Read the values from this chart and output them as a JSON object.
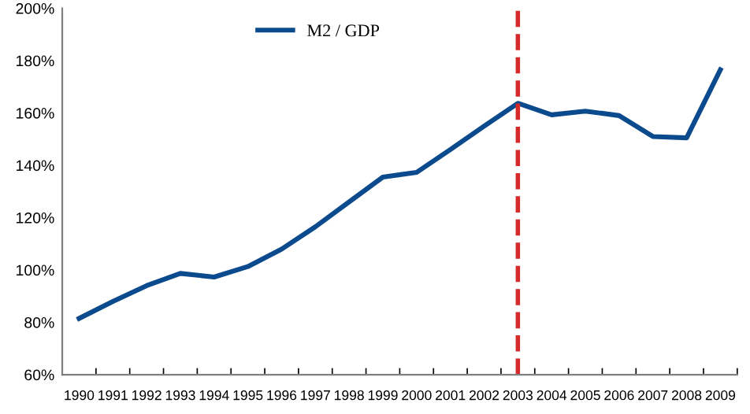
{
  "chart_data": {
    "type": "line",
    "categories": [
      "1990",
      "1991",
      "1992",
      "1993",
      "1994",
      "1995",
      "1996",
      "1997",
      "1998",
      "1999",
      "2000",
      "2001",
      "2002",
      "2003",
      "2004",
      "2005",
      "2006",
      "2007",
      "2008",
      "2009"
    ],
    "series": [
      {
        "name": "M2 / GDP",
        "color": "#0b4a8c",
        "values": [
          81.5,
          88,
          94,
          98.7,
          97.3,
          101.3,
          108,
          116.5,
          126,
          135.5,
          137.3,
          146,
          155,
          163.7,
          159.3,
          160.7,
          159,
          151,
          150.5,
          176.5
        ]
      }
    ],
    "ylim": [
      60,
      200
    ],
    "yticks": [
      {
        "value": 60,
        "label": "60%"
      },
      {
        "value": 80,
        "label": "80%"
      },
      {
        "value": 100,
        "label": "100%"
      },
      {
        "value": 120,
        "label": "120%"
      },
      {
        "value": 140,
        "label": "140%"
      },
      {
        "value": 160,
        "label": "160%"
      },
      {
        "value": 180,
        "label": "180%"
      },
      {
        "value": 200,
        "label": "200%"
      }
    ],
    "ref_lines": [
      {
        "axis": "x",
        "value": "2003",
        "label": null,
        "color": "#d42a2a",
        "line_style": "dashed"
      }
    ],
    "legend": "top",
    "grid": false,
    "marker": "none",
    "line_style": "solid"
  }
}
